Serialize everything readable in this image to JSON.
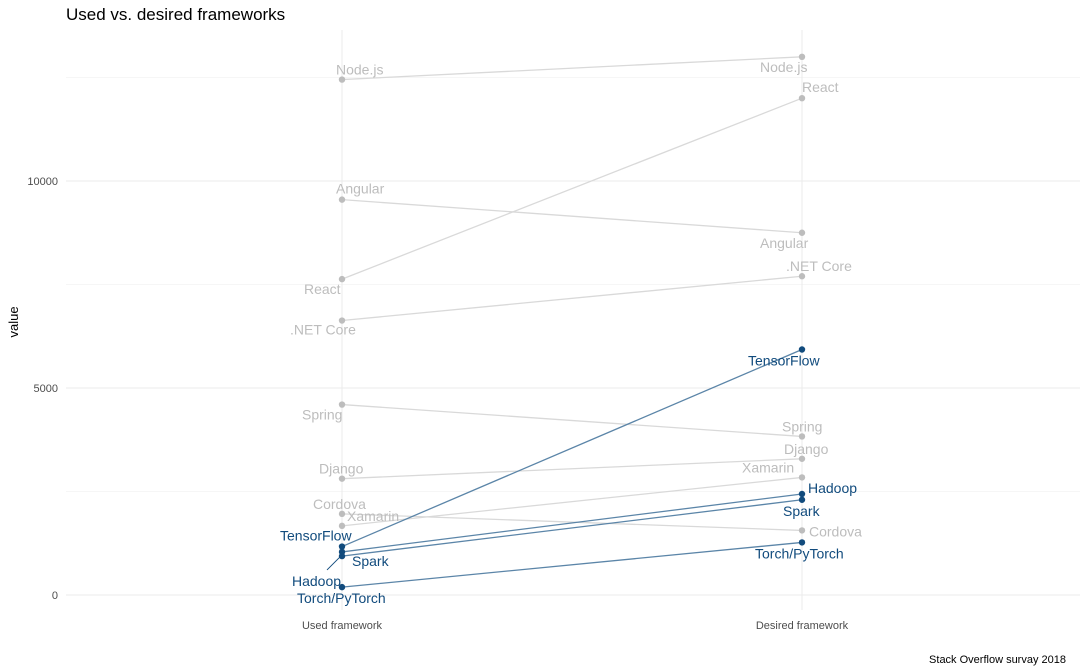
{
  "chart_data": {
    "type": "line",
    "title": "Used vs. desired frameworks",
    "ylabel": "value",
    "xlabel": "",
    "caption": "Stack Overflow survay 2018",
    "categories": [
      "Used framework",
      "Desired framework"
    ],
    "ylim": [
      -200,
      13300
    ],
    "yticks": [
      0,
      5000,
      10000
    ],
    "grid": true,
    "colors": {
      "highlight": "#114b7d",
      "muted": "#bdbdbd",
      "line_muted": "#d9d9d9",
      "line_highlight": "#5b85a8"
    },
    "series": [
      {
        "name": "Node.js",
        "values": [
          12450,
          13000
        ],
        "highlight": false
      },
      {
        "name": "React",
        "values": [
          7630,
          12000
        ],
        "highlight": false
      },
      {
        "name": "Angular",
        "values": [
          9550,
          8750
        ],
        "highlight": false
      },
      {
        "name": ".NET Core",
        "values": [
          6630,
          7700
        ],
        "highlight": false
      },
      {
        "name": "Spring",
        "values": [
          4600,
          3830
        ],
        "highlight": false
      },
      {
        "name": "Django",
        "values": [
          2810,
          3290
        ],
        "highlight": false
      },
      {
        "name": "Xamarin",
        "values": [
          1670,
          2840
        ],
        "highlight": false
      },
      {
        "name": "Cordova",
        "values": [
          1960,
          1560
        ],
        "highlight": false
      },
      {
        "name": "TensorFlow",
        "values": [
          1170,
          5930
        ],
        "highlight": true
      },
      {
        "name": "Hadoop",
        "values": [
          1040,
          2440
        ],
        "highlight": true
      },
      {
        "name": "Spark",
        "values": [
          940,
          2300
        ],
        "highlight": true
      },
      {
        "name": "Torch/PyTorch",
        "values": [
          190,
          1270
        ],
        "highlight": true
      }
    ]
  }
}
